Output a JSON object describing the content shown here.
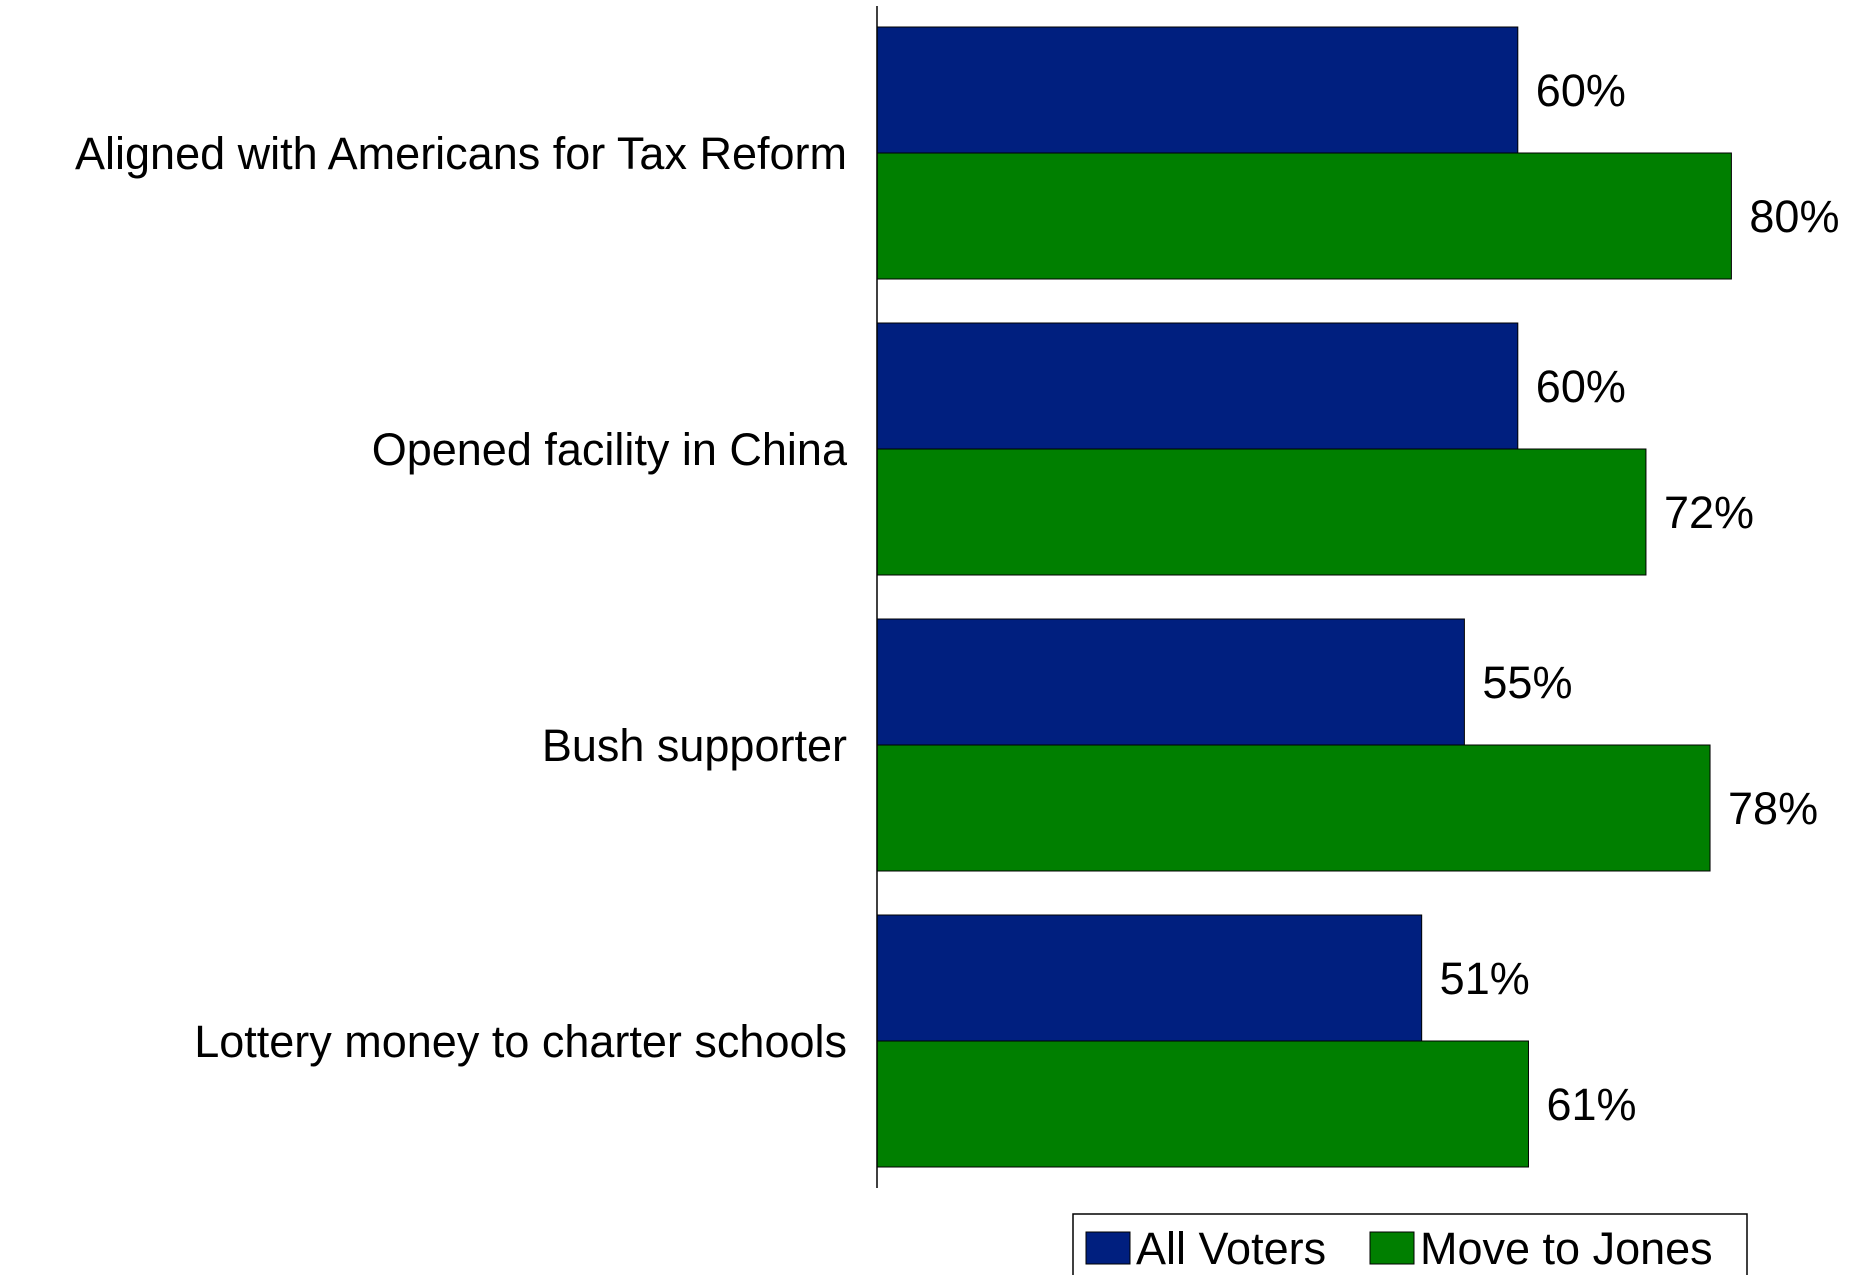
{
  "chart_data": {
    "type": "bar",
    "orientation": "horizontal",
    "title": "",
    "xlabel": "",
    "ylabel": "",
    "categories": [
      "Aligned with Americans for Tax Reform",
      "Opened facility in China",
      "Bush supporter",
      "Lottery money to charter schools"
    ],
    "series": [
      {
        "name": "All Voters",
        "color": "#001f7f",
        "values": [
          60,
          60,
          55,
          51
        ],
        "labels": [
          "60%",
          "60%",
          "55%",
          "51%"
        ]
      },
      {
        "name": "Move to Jones",
        "color": "#007f00",
        "values": [
          80,
          72,
          78,
          61
        ],
        "labels": [
          "80%",
          "72%",
          "78%",
          "61%"
        ]
      }
    ],
    "value_unit": "%",
    "xlim": [
      0,
      100
    ],
    "grid": false,
    "legend": {
      "position": "bottom-right",
      "entries": [
        "All Voters",
        "Move to Jones"
      ]
    }
  }
}
